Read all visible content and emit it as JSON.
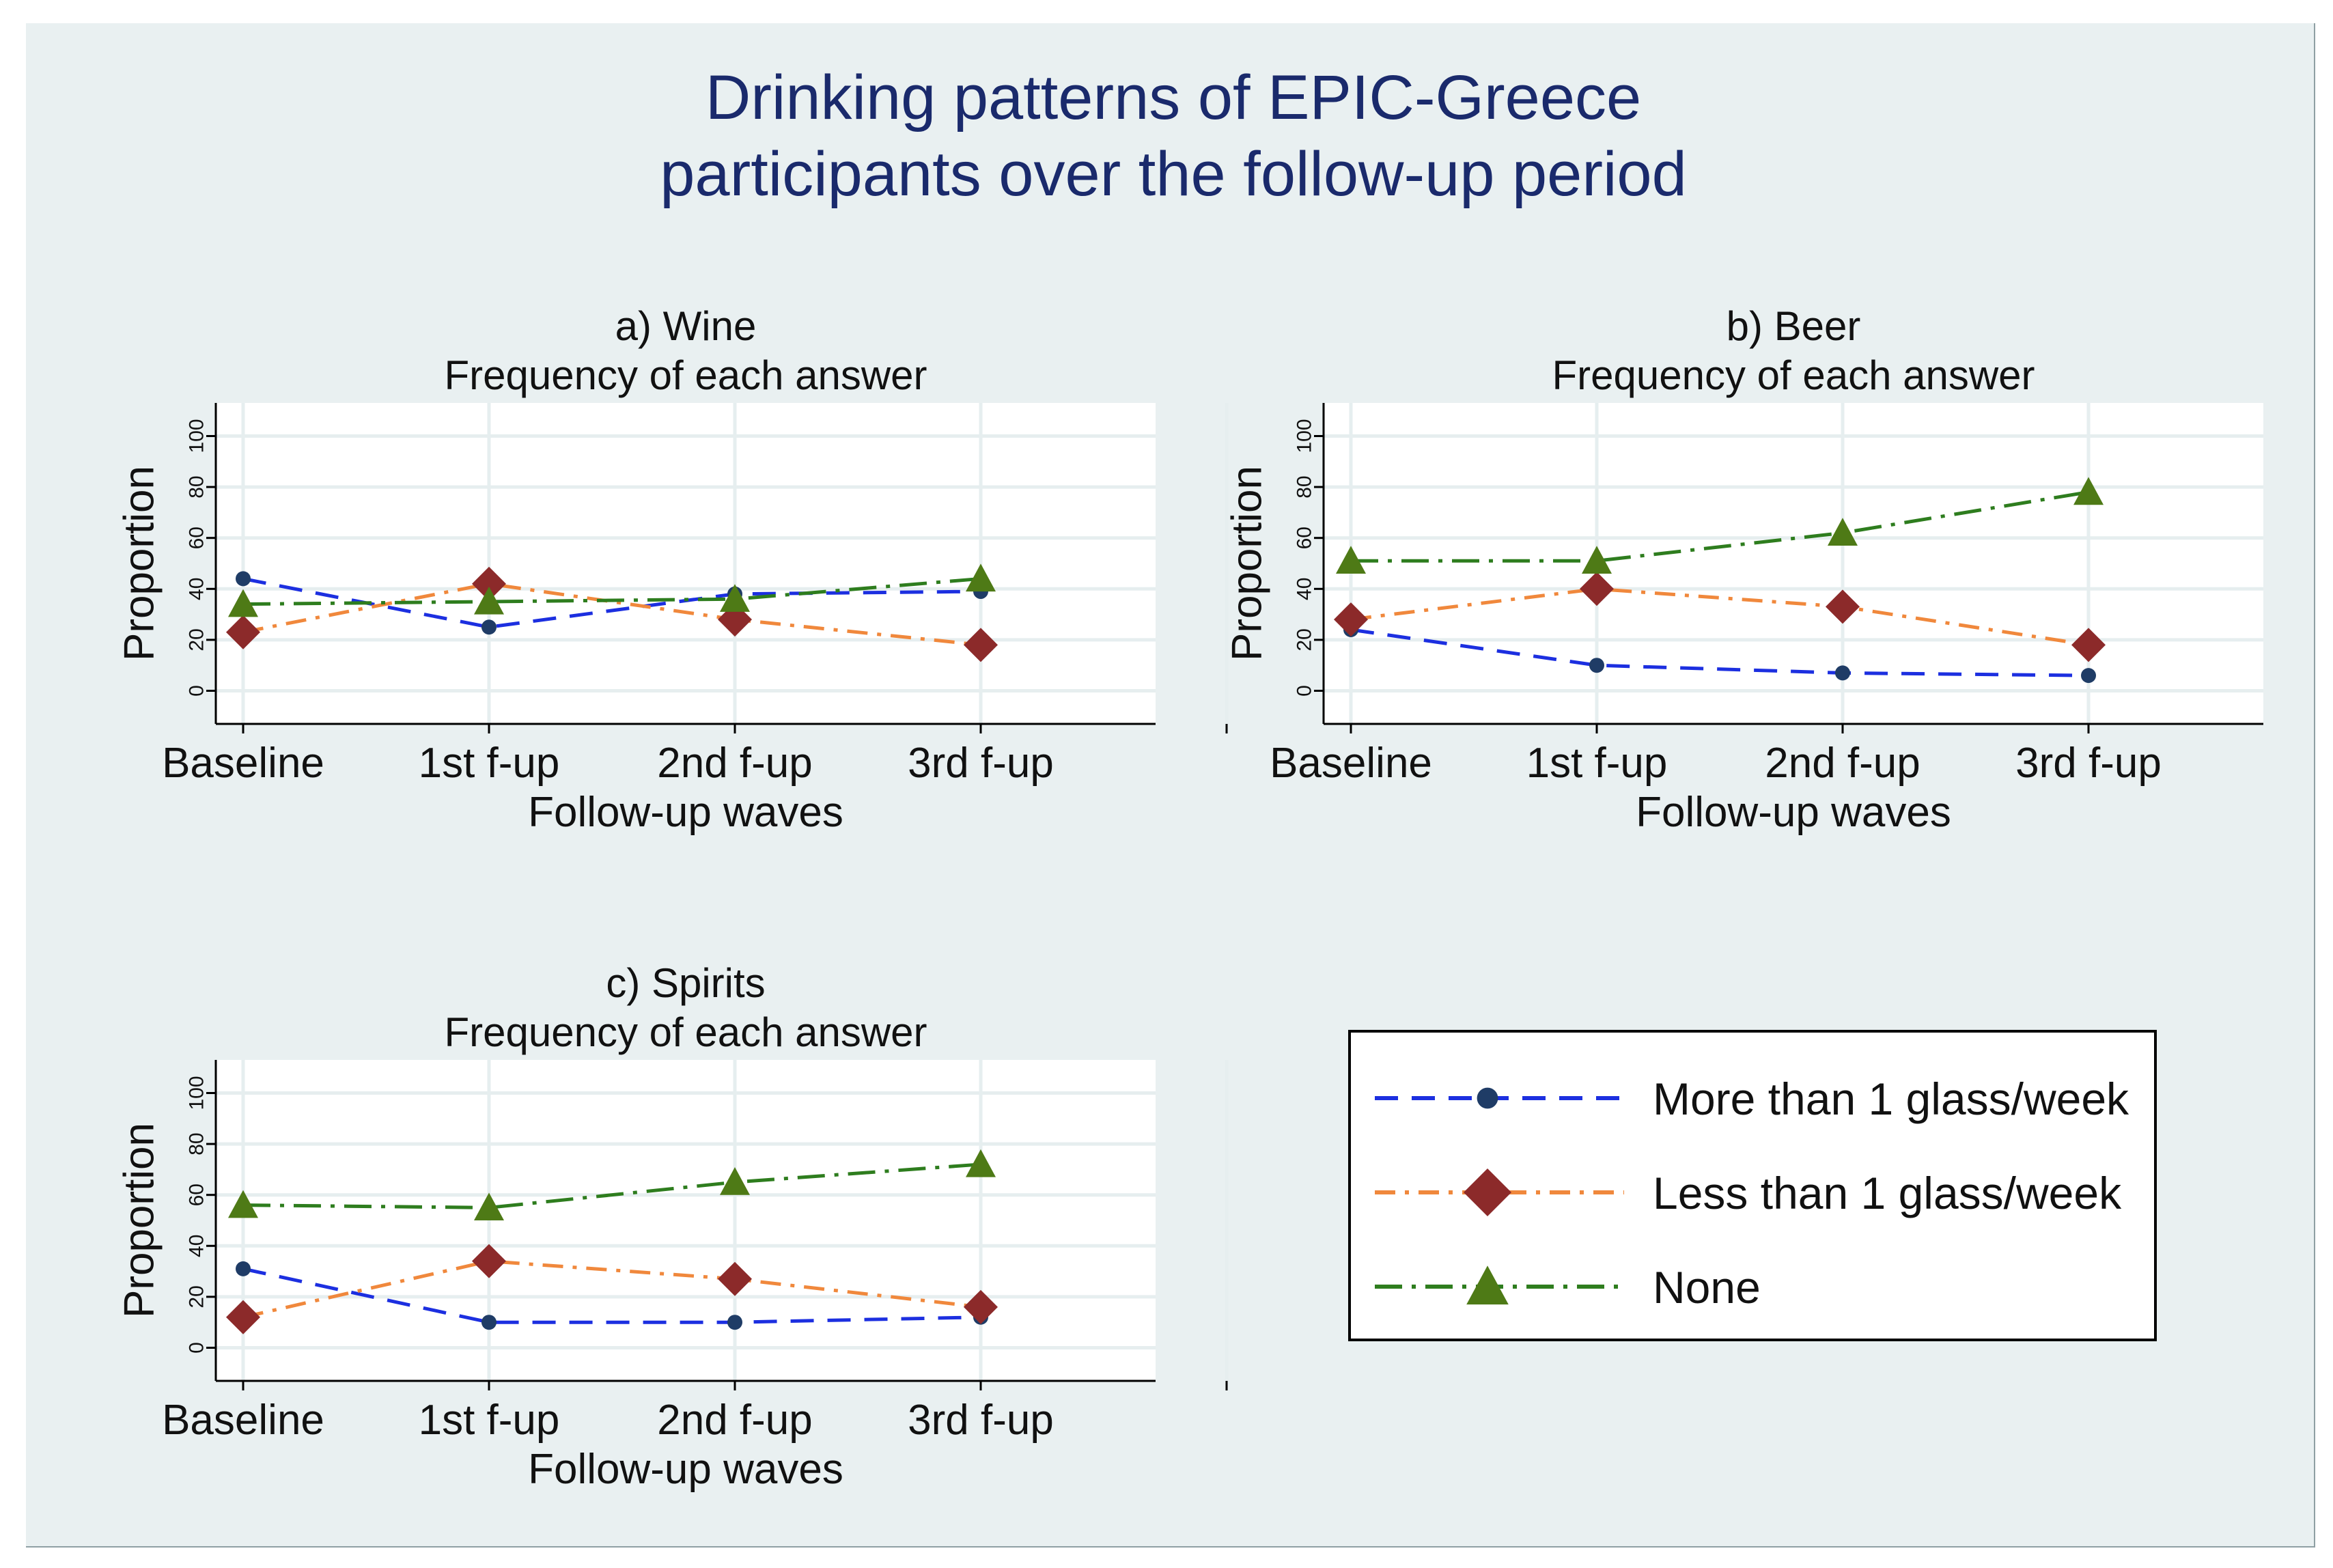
{
  "title_line1": "Drinking patterns of EPIC-Greece",
  "title_line2": "participants over the follow-up period",
  "colors": {
    "background": "#e9f0f1",
    "plot_background": "#ffffff",
    "grid": "#e6eeef",
    "title": "#1a2a6c",
    "more": "#1c2fe0",
    "more_marker": "#1f3c66",
    "less": "#f0883c",
    "less_marker": "#8c2a2a",
    "none": "#2e7d1e",
    "none_marker": "#4e7a16"
  },
  "legend": {
    "entries": [
      "More than 1 glass/week",
      "Less than 1 glass/week",
      "None"
    ]
  },
  "chart_data": [
    {
      "type": "line",
      "title": "a) Wine",
      "subtitle": "Frequency of each answer",
      "xlabel": "Follow-up waves",
      "ylabel": "Proportion",
      "categories": [
        "Baseline",
        "1st f-up",
        "2nd f-up",
        "3rd f-up"
      ],
      "yticks": [
        "0",
        "20",
        "40",
        "60",
        "80",
        "100"
      ],
      "ylim": [
        -13,
        113
      ],
      "series": [
        {
          "name": "More than 1 glass/week",
          "values": [
            44,
            25,
            38,
            39
          ]
        },
        {
          "name": "Less than 1 glass/week",
          "values": [
            23,
            42,
            28,
            18
          ]
        },
        {
          "name": "None",
          "values": [
            34,
            35,
            36,
            44
          ]
        }
      ]
    },
    {
      "type": "line",
      "title": "b) Beer",
      "subtitle": "Frequency of each answer",
      "xlabel": "Follow-up waves",
      "ylabel": "Proportion",
      "categories": [
        "Baseline",
        "1st f-up",
        "2nd f-up",
        "3rd f-up"
      ],
      "yticks": [
        "0",
        "20",
        "40",
        "60",
        "80",
        "100"
      ],
      "ylim": [
        -13,
        113
      ],
      "series": [
        {
          "name": "More than 1 glass/week",
          "values": [
            24,
            10,
            7,
            6
          ]
        },
        {
          "name": "Less than 1 glass/week",
          "values": [
            28,
            40,
            33,
            18
          ]
        },
        {
          "name": "None",
          "values": [
            51,
            51,
            62,
            78
          ]
        }
      ]
    },
    {
      "type": "line",
      "title": "c) Spirits",
      "subtitle": "Frequency of each answer",
      "xlabel": "Follow-up waves",
      "ylabel": "Proportion",
      "categories": [
        "Baseline",
        "1st f-up",
        "2nd f-up",
        "3rd f-up"
      ],
      "yticks": [
        "0",
        "20",
        "40",
        "60",
        "80",
        "100"
      ],
      "ylim": [
        -13,
        113
      ],
      "series": [
        {
          "name": "More than 1 glass/week",
          "values": [
            31,
            10,
            10,
            12
          ]
        },
        {
          "name": "Less than 1 glass/week",
          "values": [
            12,
            34,
            27,
            16
          ]
        },
        {
          "name": "None",
          "values": [
            56,
            55,
            65,
            72
          ]
        }
      ]
    }
  ]
}
